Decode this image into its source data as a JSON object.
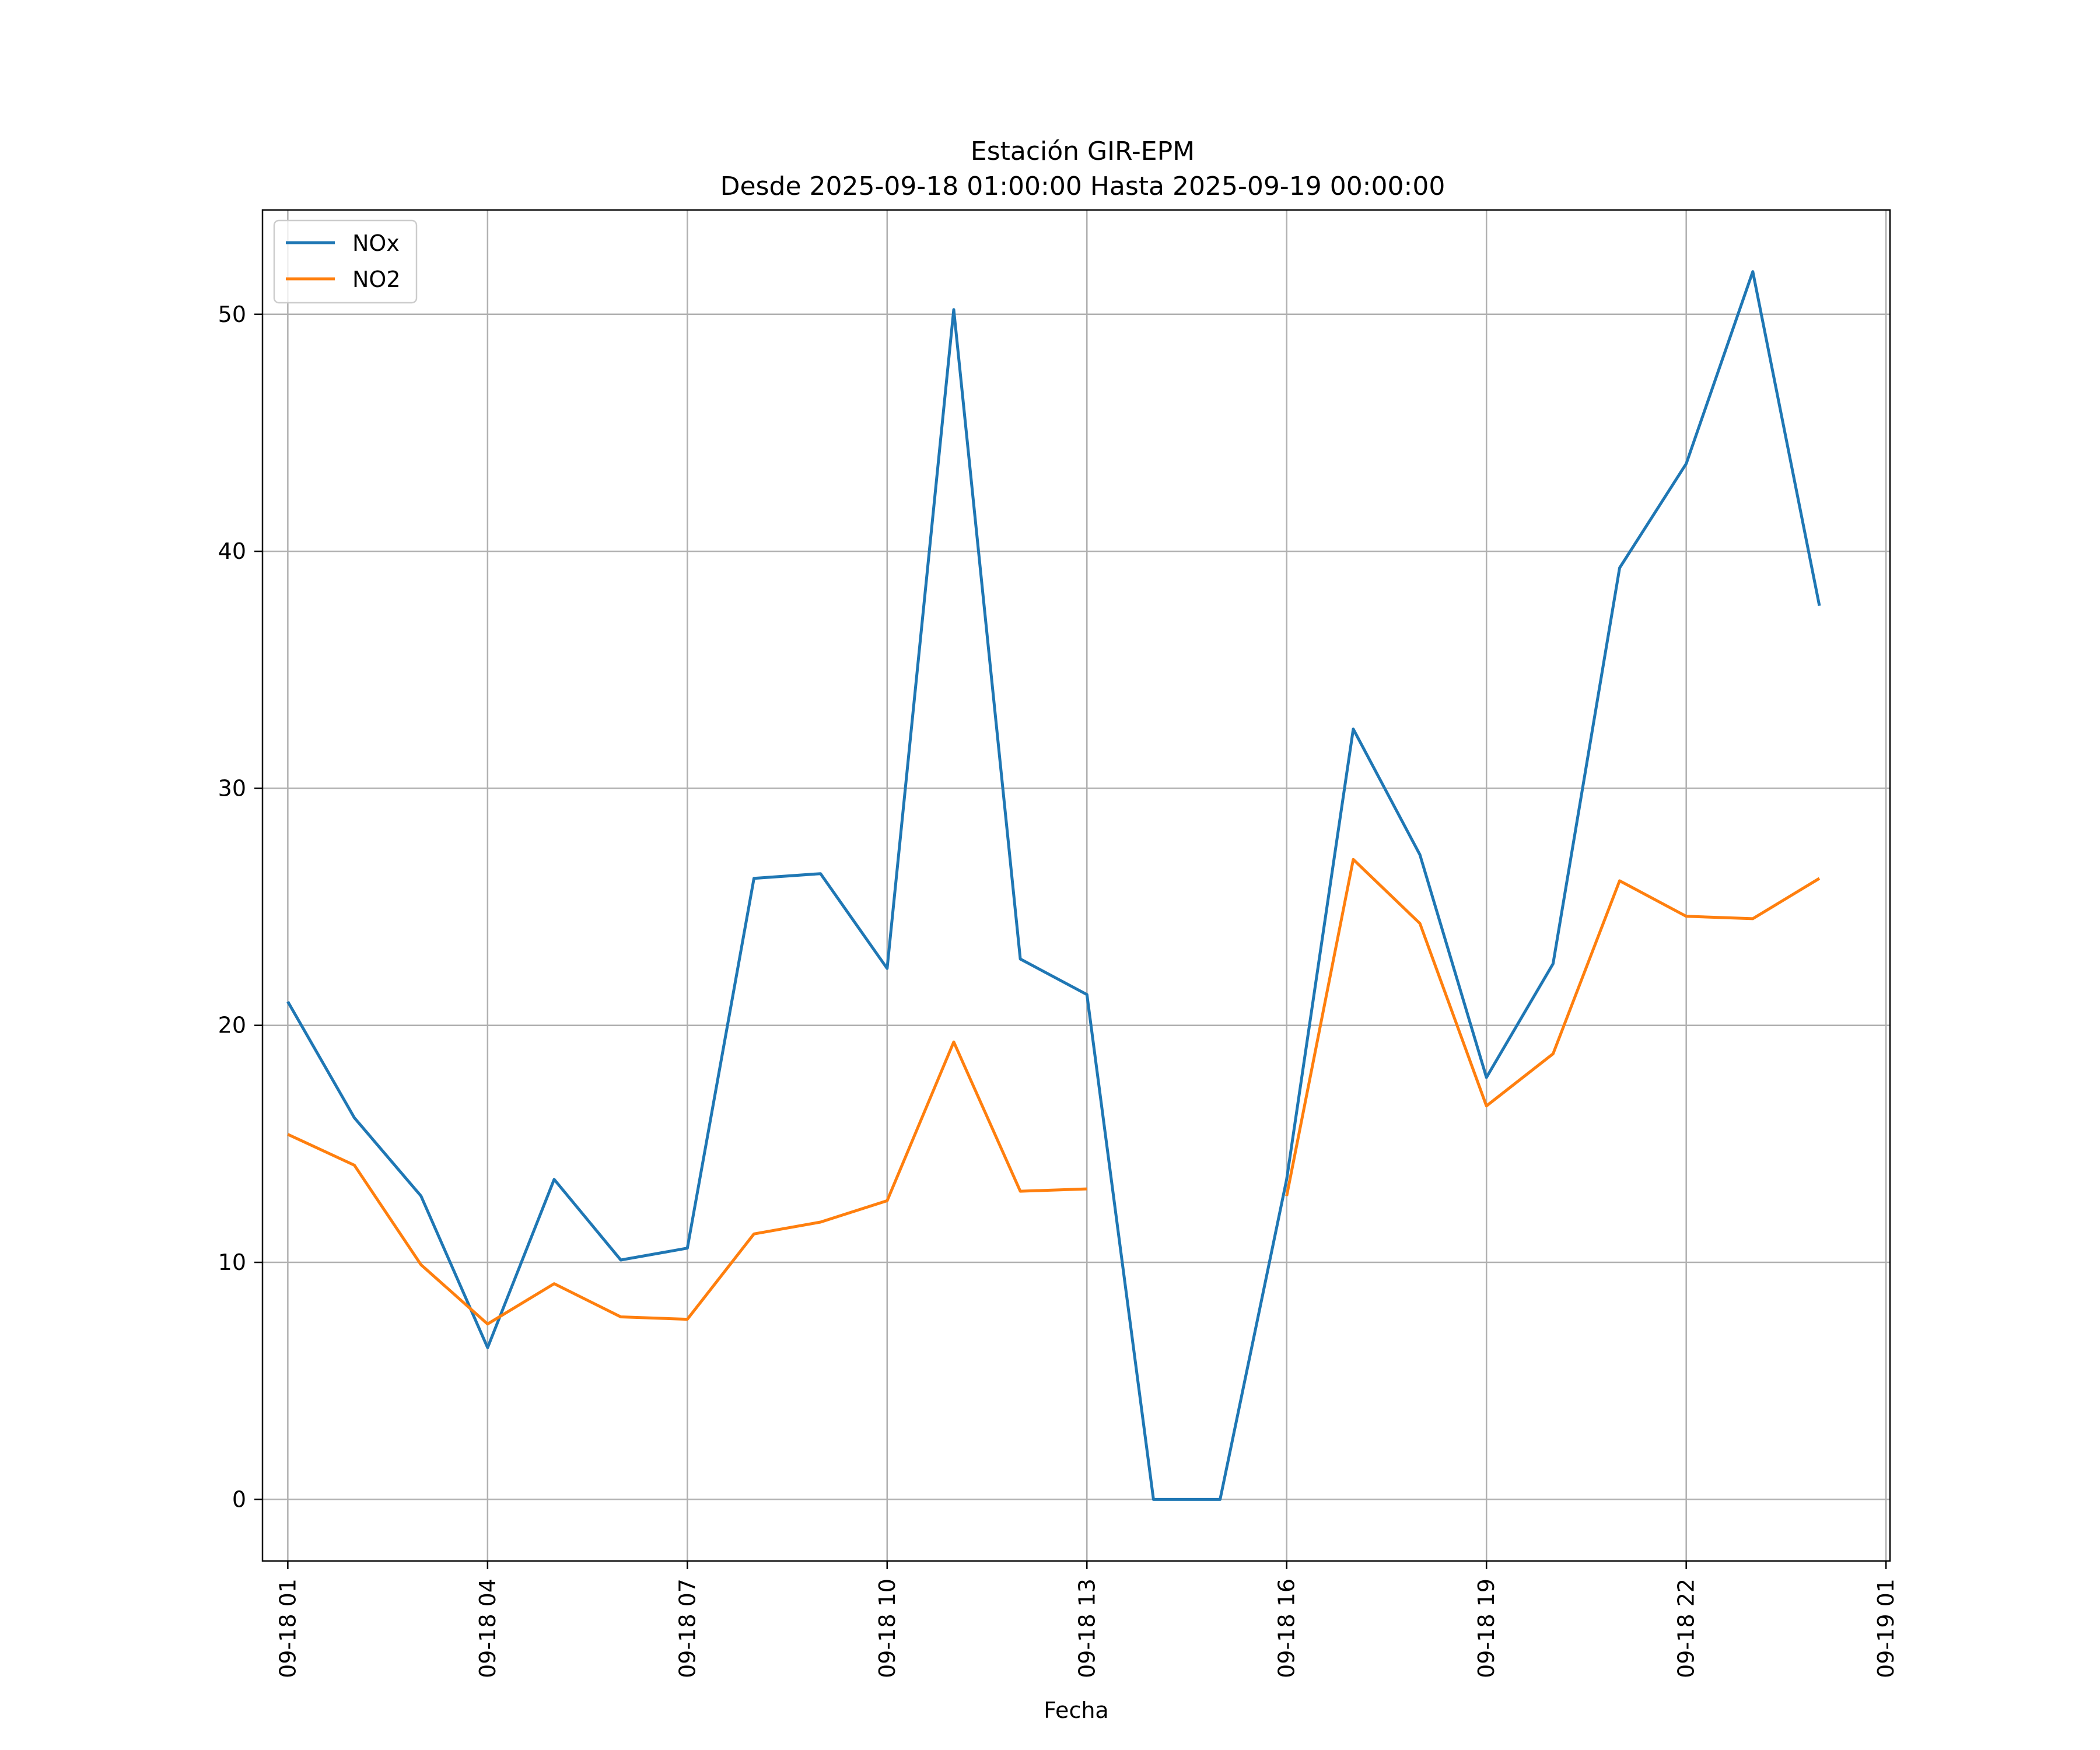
{
  "chart_data": {
    "type": "line",
    "title": "Estación GIR-EPM",
    "subtitle": "Desde 2025-09-18 01:00:00 Hasta 2025-09-19 00:00:00",
    "xlabel": "Fecha",
    "ylabel": "",
    "ylim": [
      -2.6,
      54.4
    ],
    "xlim": [
      -0.38,
      24.06
    ],
    "grid": true,
    "legend_position": "top-left",
    "x_ticks": [
      {
        "hour": 0,
        "label": "09-18 01"
      },
      {
        "hour": 3,
        "label": "09-18 04"
      },
      {
        "hour": 6,
        "label": "09-18 07"
      },
      {
        "hour": 9,
        "label": "09-18 10"
      },
      {
        "hour": 12,
        "label": "09-18 13"
      },
      {
        "hour": 15,
        "label": "09-18 16"
      },
      {
        "hour": 18,
        "label": "09-18 19"
      },
      {
        "hour": 21,
        "label": "09-18 22"
      },
      {
        "hour": 24,
        "label": "09-19 01"
      }
    ],
    "y_ticks": [
      0,
      10,
      20,
      30,
      40,
      50
    ],
    "x": [
      "09-18 01",
      "09-18 02",
      "09-18 03",
      "09-18 04",
      "09-18 05",
      "09-18 06",
      "09-18 07",
      "09-18 08",
      "09-18 09",
      "09-18 10",
      "09-18 11",
      "09-18 12",
      "09-18 13",
      "09-18 14",
      "09-18 15",
      "09-18 16",
      "09-18 17",
      "09-18 18",
      "09-18 19",
      "09-18 20",
      "09-18 21",
      "09-18 22",
      "09-18 23",
      "09-19 00"
    ],
    "series": [
      {
        "name": "NOx",
        "color": "#1f77b4",
        "values": [
          21.0,
          16.1,
          12.8,
          6.4,
          13.5,
          10.1,
          10.6,
          26.2,
          26.4,
          22.4,
          50.2,
          22.8,
          21.3,
          0.0,
          0.0,
          13.5,
          32.5,
          27.2,
          17.8,
          22.6,
          39.3,
          43.7,
          51.8,
          37.7
        ]
      },
      {
        "name": "NO2",
        "color": "#ff7f0e",
        "values": [
          15.4,
          14.1,
          9.9,
          7.4,
          9.1,
          7.7,
          7.6,
          11.2,
          11.7,
          12.6,
          19.3,
          13.0,
          13.1,
          null,
          null,
          12.8,
          27.0,
          24.3,
          16.6,
          18.8,
          26.1,
          24.6,
          24.5,
          26.2
        ]
      }
    ]
  }
}
